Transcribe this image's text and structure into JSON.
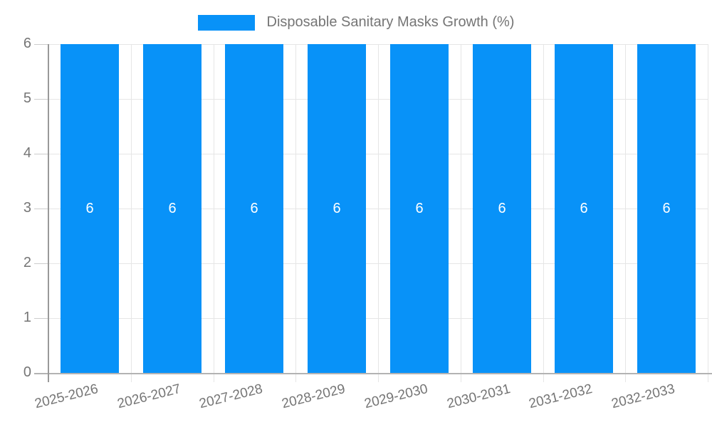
{
  "chart_data": {
    "type": "bar",
    "title": "Disposable Sanitary Masks Growth (%)",
    "categories": [
      "2025-2026",
      "2026-2027",
      "2027-2028",
      "2028-2029",
      "2029-2030",
      "2030-2031",
      "2031-2032",
      "2032-2033"
    ],
    "series": [
      {
        "name": "Disposable Sanitary Masks Growth (%)",
        "values": [
          6,
          6,
          6,
          6,
          6,
          6,
          6,
          6
        ]
      }
    ],
    "bar_value_labels": [
      "6",
      "6",
      "6",
      "6",
      "6",
      "6",
      "6",
      "6"
    ],
    "xlabel": "",
    "ylabel": "",
    "ylim": [
      0,
      6
    ],
    "yticks": [
      0,
      1,
      2,
      3,
      4,
      5,
      6
    ],
    "grid": true,
    "legend_position": "top-center",
    "x_label_rotation_deg": -14,
    "colors": {
      "bar": "#0892f8",
      "bar_label": "#ffffff",
      "axis_text": "#757575",
      "legend_text": "#757575",
      "gridline": "#e6e6e6",
      "tick": "#cccccc",
      "x_axis_line": "#b3b3b3",
      "y_axis_line": "#999999",
      "background": "#ffffff"
    }
  }
}
